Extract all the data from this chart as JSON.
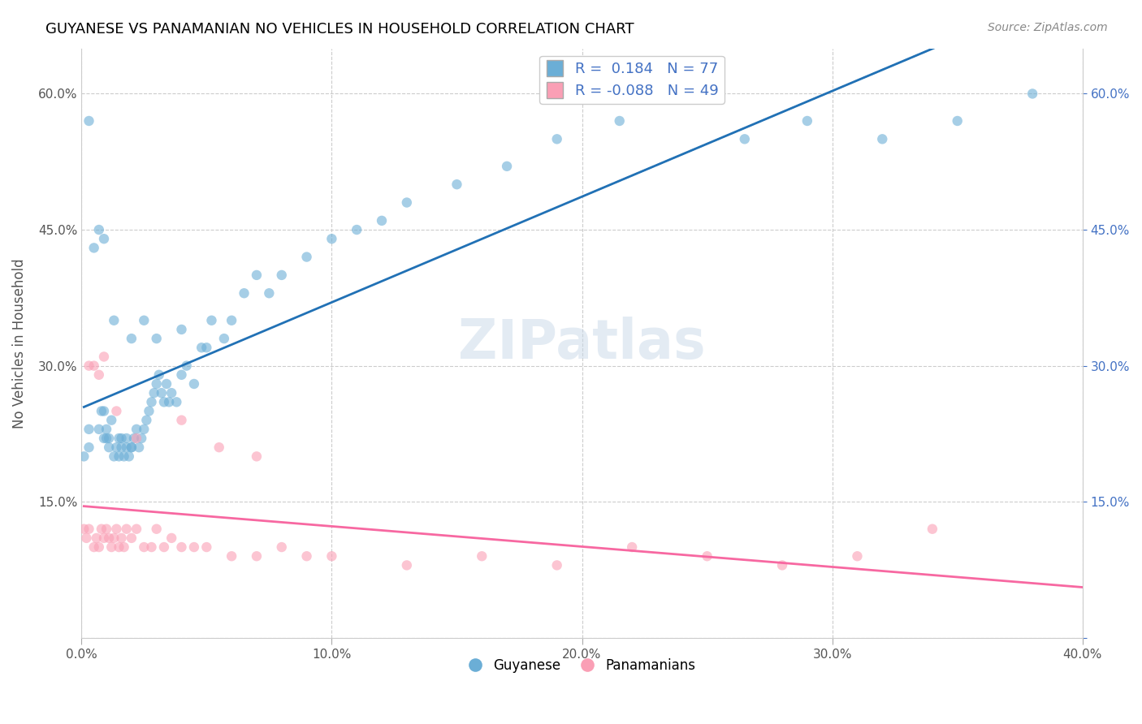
{
  "title": "GUYANESE VS PANAMANIAN NO VEHICLES IN HOUSEHOLD CORRELATION CHART",
  "source": "Source: ZipAtlas.com",
  "xlabel_bottom": "",
  "ylabel": "No Vehicles in Household",
  "xlim": [
    0.0,
    0.4
  ],
  "ylim": [
    0.0,
    0.65
  ],
  "xtick_labels": [
    "0.0%",
    "10.0%",
    "20.0%",
    "30.0%",
    "40.0%"
  ],
  "xtick_values": [
    0.0,
    0.1,
    0.2,
    0.3,
    0.4
  ],
  "ytick_labels_left": [
    "",
    "15.0%",
    "30.0%",
    "45.0%",
    "60.0%"
  ],
  "ytick_values_left": [
    0.0,
    0.15,
    0.3,
    0.45,
    0.6
  ],
  "ytick_labels_right": [
    "",
    "15.0%",
    "30.0%",
    "45.0%",
    "60.0%"
  ],
  "ytick_values_right": [
    0.0,
    0.15,
    0.3,
    0.45,
    0.6
  ],
  "blue_color": "#6baed6",
  "pink_color": "#fa9fb5",
  "blue_line_color": "#2171b5",
  "pink_line_color": "#f768a1",
  "blue_scatter_alpha": 0.6,
  "pink_scatter_alpha": 0.6,
  "marker_size": 80,
  "R_blue": 0.184,
  "N_blue": 77,
  "R_pink": -0.088,
  "N_pink": 49,
  "legend_label_blue": "Guyanese",
  "legend_label_pink": "Panamanians",
  "watermark": "ZIPatlas",
  "blue_x": [
    0.001,
    0.003,
    0.003,
    0.007,
    0.008,
    0.009,
    0.009,
    0.01,
    0.01,
    0.011,
    0.011,
    0.012,
    0.013,
    0.014,
    0.015,
    0.015,
    0.016,
    0.016,
    0.017,
    0.018,
    0.018,
    0.019,
    0.02,
    0.02,
    0.021,
    0.022,
    0.023,
    0.024,
    0.025,
    0.026,
    0.027,
    0.028,
    0.029,
    0.03,
    0.031,
    0.032,
    0.033,
    0.034,
    0.035,
    0.036,
    0.038,
    0.04,
    0.042,
    0.045,
    0.048,
    0.052,
    0.057,
    0.06,
    0.065,
    0.07,
    0.075,
    0.08,
    0.09,
    0.1,
    0.11,
    0.12,
    0.13,
    0.15,
    0.17,
    0.19,
    0.215,
    0.24,
    0.265,
    0.29,
    0.32,
    0.35,
    0.38,
    0.005,
    0.007,
    0.009,
    0.013,
    0.05,
    0.003,
    0.02,
    0.025,
    0.03,
    0.04
  ],
  "blue_y": [
    0.2,
    0.21,
    0.23,
    0.23,
    0.25,
    0.22,
    0.25,
    0.23,
    0.22,
    0.21,
    0.22,
    0.24,
    0.2,
    0.21,
    0.22,
    0.2,
    0.22,
    0.21,
    0.2,
    0.21,
    0.22,
    0.2,
    0.21,
    0.21,
    0.22,
    0.23,
    0.21,
    0.22,
    0.23,
    0.24,
    0.25,
    0.26,
    0.27,
    0.28,
    0.29,
    0.27,
    0.26,
    0.28,
    0.26,
    0.27,
    0.26,
    0.29,
    0.3,
    0.28,
    0.32,
    0.35,
    0.33,
    0.35,
    0.38,
    0.4,
    0.38,
    0.4,
    0.42,
    0.44,
    0.45,
    0.46,
    0.48,
    0.5,
    0.52,
    0.55,
    0.57,
    0.6,
    0.55,
    0.57,
    0.55,
    0.57,
    0.6,
    0.43,
    0.45,
    0.44,
    0.35,
    0.32,
    0.57,
    0.33,
    0.35,
    0.33,
    0.34
  ],
  "pink_x": [
    0.001,
    0.002,
    0.003,
    0.005,
    0.006,
    0.007,
    0.008,
    0.009,
    0.01,
    0.011,
    0.012,
    0.013,
    0.014,
    0.015,
    0.016,
    0.017,
    0.018,
    0.02,
    0.022,
    0.025,
    0.028,
    0.03,
    0.033,
    0.036,
    0.04,
    0.045,
    0.05,
    0.06,
    0.07,
    0.08,
    0.09,
    0.1,
    0.13,
    0.16,
    0.19,
    0.22,
    0.25,
    0.28,
    0.31,
    0.003,
    0.005,
    0.007,
    0.009,
    0.014,
    0.022,
    0.04,
    0.055,
    0.07,
    0.34
  ],
  "pink_y": [
    0.12,
    0.11,
    0.12,
    0.1,
    0.11,
    0.1,
    0.12,
    0.11,
    0.12,
    0.11,
    0.1,
    0.11,
    0.12,
    0.1,
    0.11,
    0.1,
    0.12,
    0.11,
    0.12,
    0.1,
    0.1,
    0.12,
    0.1,
    0.11,
    0.1,
    0.1,
    0.1,
    0.09,
    0.09,
    0.1,
    0.09,
    0.09,
    0.08,
    0.09,
    0.08,
    0.1,
    0.09,
    0.08,
    0.09,
    0.3,
    0.3,
    0.29,
    0.31,
    0.25,
    0.22,
    0.24,
    0.21,
    0.2,
    0.12
  ]
}
